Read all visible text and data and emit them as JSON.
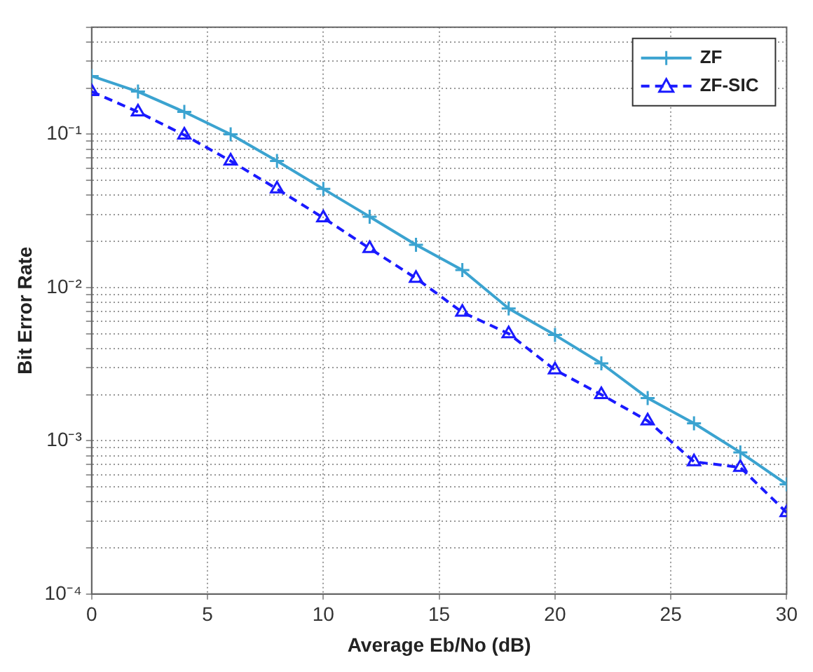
{
  "chart_data": {
    "type": "line",
    "xlabel": "Average Eb/No (dB)",
    "ylabel": "Bit Error Rate",
    "log": "y",
    "grid": true,
    "legend": "top right",
    "x": [
      0,
      2,
      4,
      6,
      8,
      10,
      12,
      14,
      16,
      18,
      20,
      22,
      24,
      26,
      28,
      30
    ],
    "xlim": [
      0,
      30
    ],
    "xticks": [
      0,
      5,
      10,
      15,
      20,
      25,
      30
    ],
    "ylim": [
      0.0001,
      0.5
    ],
    "yticks": [
      {
        "value": 0.0001,
        "label": "10⁻⁴"
      },
      {
        "value": 0.0002,
        "label": null
      },
      {
        "value": 0.0003,
        "label": null
      },
      {
        "value": 0.0004,
        "label": null
      },
      {
        "value": 0.0005,
        "label": null
      },
      {
        "value": 0.0006,
        "label": null
      },
      {
        "value": 0.0007,
        "label": null
      },
      {
        "value": 0.0008,
        "label": null
      },
      {
        "value": 0.0009,
        "label": null
      },
      {
        "value": 0.001,
        "label": "10⁻³"
      },
      {
        "value": 0.002,
        "label": null
      },
      {
        "value": 0.003,
        "label": null
      },
      {
        "value": 0.004,
        "label": null
      },
      {
        "value": 0.005,
        "label": null
      },
      {
        "value": 0.006,
        "label": null
      },
      {
        "value": 0.007,
        "label": null
      },
      {
        "value": 0.008,
        "label": null
      },
      {
        "value": 0.009,
        "label": null
      },
      {
        "value": 0.01,
        "label": "10⁻²"
      },
      {
        "value": 0.02,
        "label": null
      },
      {
        "value": 0.03,
        "label": null
      },
      {
        "value": 0.04,
        "label": null
      },
      {
        "value": 0.05,
        "label": null
      },
      {
        "value": 0.06,
        "label": null
      },
      {
        "value": 0.07,
        "label": null
      },
      {
        "value": 0.08,
        "label": null
      },
      {
        "value": 0.09,
        "label": null
      },
      {
        "value": 0.1,
        "label": "10⁻¹"
      },
      {
        "value": 0.2,
        "label": null
      },
      {
        "value": 0.3,
        "label": null
      },
      {
        "value": 0.4,
        "label": null
      },
      {
        "value": 0.5,
        "label": null
      }
    ],
    "series": [
      {
        "name": "ZF",
        "color": "#3ba3d0",
        "marker": "cross",
        "line_style": "solid",
        "values": [
          0.24,
          0.19,
          0.14,
          0.1,
          0.067,
          0.044,
          0.029,
          0.019,
          0.013,
          0.0073,
          0.0049,
          0.0032,
          0.0019,
          0.0013,
          0.00084,
          0.00052
        ]
      },
      {
        "name": "ZF-SIC",
        "color": "#1a1aff",
        "marker": "triangle",
        "line_style": "dashed",
        "values": [
          0.19,
          0.14,
          0.099,
          0.067,
          0.044,
          0.0285,
          0.018,
          0.0115,
          0.0069,
          0.005,
          0.0029,
          0.002,
          0.00135,
          0.00073,
          0.00067,
          0.00034
        ]
      }
    ]
  }
}
